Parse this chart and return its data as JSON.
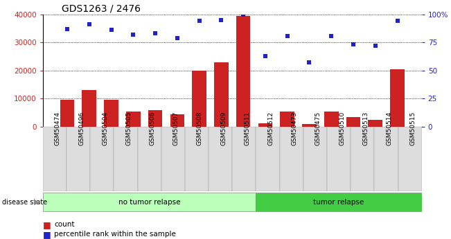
{
  "title": "GDS1263 / 2476",
  "samples": [
    "GSM50474",
    "GSM50496",
    "GSM50504",
    "GSM50505",
    "GSM50506",
    "GSM50507",
    "GSM50508",
    "GSM50509",
    "GSM50511",
    "GSM50512",
    "GSM50473",
    "GSM50475",
    "GSM50510",
    "GSM50513",
    "GSM50514",
    "GSM50515"
  ],
  "counts": [
    9500,
    13000,
    9500,
    5500,
    6000,
    4500,
    20000,
    23000,
    39500,
    1200,
    5500,
    900,
    5500,
    3500,
    2500,
    20500
  ],
  "percentiles": [
    87,
    91,
    86,
    82,
    83,
    79,
    94,
    95,
    100,
    63,
    81,
    57,
    81,
    73,
    72,
    94
  ],
  "bar_color": "#cc2222",
  "dot_color": "#2222cc",
  "no_tumor_count": 9,
  "tumor_count": 7,
  "no_tumor_label": "no tumor relapse",
  "tumor_label": "tumor relapse",
  "legend_count_label": "count",
  "legend_pct_label": "percentile rank within the sample",
  "disease_state_label": "disease state",
  "ylim_left": [
    0,
    40000
  ],
  "ylim_right": [
    0,
    100
  ],
  "yticks_left": [
    0,
    10000,
    20000,
    30000,
    40000
  ],
  "yticks_right": [
    0,
    25,
    50,
    75,
    100
  ],
  "yticklabels_right": [
    "0",
    "25",
    "50",
    "75",
    "100%"
  ],
  "bg_xticklabel": "#dddddd",
  "bg_no_tumor": "#bbffbb",
  "bg_tumor": "#44cc44",
  "title_fontsize": 10
}
